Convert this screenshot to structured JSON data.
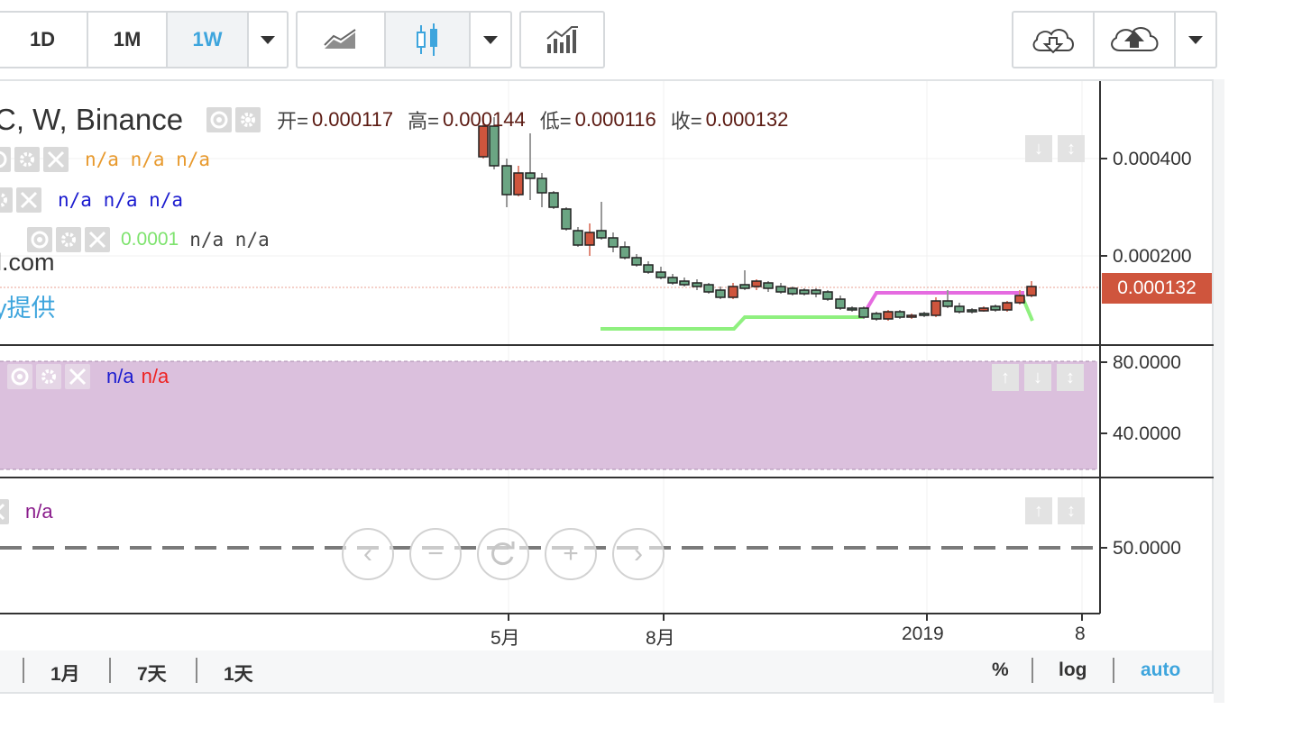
{
  "toolbar": {
    "intervals": [
      {
        "label": "1D",
        "active": false
      },
      {
        "label": "1M",
        "active": false
      },
      {
        "label": "1W",
        "active": true
      }
    ]
  },
  "main_pane": {
    "symbol_title": "C, W, Binance",
    "ohlc": [
      {
        "label": "开=",
        "value": "0.000117"
      },
      {
        "label": "高=",
        "value": "0.000144"
      },
      {
        "label": "低=",
        "value": "0.000116"
      },
      {
        "label": "收=",
        "value": "0.000132"
      }
    ],
    "study1_values": "n/a n/a n/a",
    "study2_values": "n/a n/a n/a",
    "study3_value_green": "0.0001",
    "study3_values": "n/a n/a",
    "watermark_line1": "l.com",
    "watermark_line2": "y提供",
    "price_axis": [
      "0.000400",
      "0.000200"
    ],
    "last_price": "0.000132"
  },
  "rsi_pane": {
    "value_blue": "n/a",
    "value_red": "n/a",
    "axis": [
      "80.0000",
      "40.0000"
    ]
  },
  "third_pane": {
    "value": "n/a",
    "axis": [
      "50.0000"
    ]
  },
  "time_axis": [
    "5月",
    "8月",
    "2019",
    "8"
  ],
  "bottom_bar": {
    "ranges": [
      "1月",
      "7天",
      "1天"
    ],
    "options": [
      {
        "label": "%",
        "active": false
      },
      {
        "label": "log",
        "active": false
      },
      {
        "label": "auto",
        "active": true
      }
    ]
  },
  "colors": {
    "up": "#6ba583",
    "down": "#cf553d",
    "accent": "#3ea5dd",
    "rsi_fill": "#dbc0dd"
  }
}
